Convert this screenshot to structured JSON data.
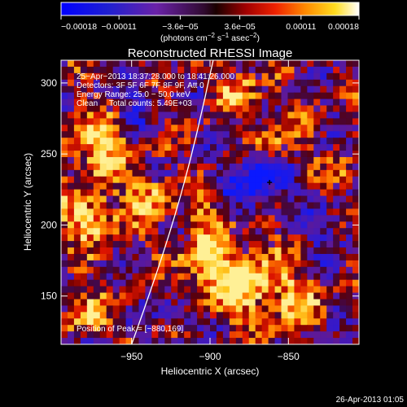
{
  "chart_data": {
    "type": "heatmap",
    "title": "Reconstructed RHESSI Image",
    "xlabel": "Heliocentric X (arcsec)",
    "ylabel": "Heliocentric Y (arcsec)",
    "xlim": [
      -995,
      -805
    ],
    "ylim": [
      116,
      316
    ],
    "xticks": [
      -950,
      -900,
      -850
    ],
    "xtick_labels": [
      "−950",
      "−900",
      "−850"
    ],
    "yticks": [
      150,
      200,
      250,
      300
    ],
    "ytick_labels": [
      "150",
      "200",
      "250",
      "300"
    ],
    "colorbar": {
      "range": [
        -0.00018,
        0.00018
      ],
      "ticks": [
        -0.00018,
        -0.00011,
        -3.6e-05,
        3.6e-05,
        0.00011,
        0.00018
      ],
      "tick_labels": [
        "−0.00018",
        "−0.00011",
        "−3.6e−05",
        "3.6e−05",
        "0.00011",
        "0.00018"
      ],
      "unit_label_main": "(photons cm",
      "unit_sup1": "−2",
      "unit_mid": " s",
      "unit_sup2": "−1",
      "unit_mid2": " asec",
      "unit_sup3": "−2",
      "unit_tail": ")"
    },
    "annotations": [
      "25−Apr−2013 18:37:28.000 to 18:41:26.000",
      "Detectors: 3F 5F 6F 7F 8F 9F, Att 0",
      "Energy Range: 25.0 − 50.0 keV",
      "Clean     Total counts: 5.49E+03"
    ],
    "peak_label": "Position of Peak = [−880,169]",
    "peak": [
      -880,
      169
    ],
    "grid": false,
    "legend": "none"
  },
  "footer": {
    "timestamp": "26-Apr-2013 01:05"
  },
  "colors": {
    "background": "#000000",
    "text": "#ffffff",
    "limb": "#ffffff"
  }
}
